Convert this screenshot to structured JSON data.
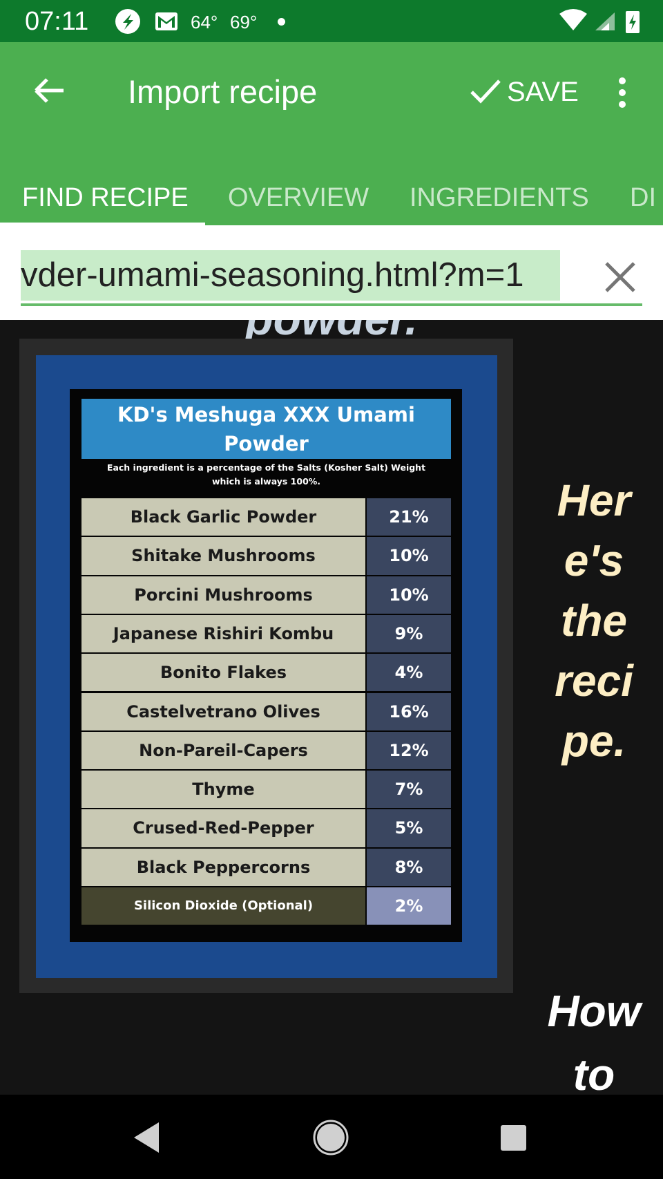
{
  "status_bar": {
    "time": "07:11",
    "temperatures": [
      "64°",
      "69°"
    ]
  },
  "app_bar": {
    "title": "Import recipe",
    "action": "SAVE"
  },
  "tabs": [
    "FIND RECIPE",
    "OVERVIEW",
    "INGREDIENTS",
    "DI"
  ],
  "url_field": {
    "text": "vder-umami-seasoning.html?m=1"
  },
  "web_content": {
    "heading_fragment": "powder.",
    "recipe_image": {
      "title": "KD's Meshuga XXX Umami Powder",
      "subtitle": "Each ingredient is a percentage of the Salts (Kosher Salt) Weight which is always 100%.",
      "rows": [
        [
          "Black Garlic Powder",
          "21%"
        ],
        [
          "Shitake Mushrooms",
          "10%"
        ],
        [
          "Porcini Mushrooms",
          "10%"
        ],
        [
          "Japanese Rishiri Kombu",
          "9%"
        ],
        [
          "Bonito Flakes",
          "4%"
        ],
        [
          "Castelvetrano Olives",
          "16%"
        ],
        [
          "Non-Pareil-Capers",
          "12%"
        ],
        [
          "Thyme",
          "7%"
        ],
        [
          "Crused-Red-Pepper",
          "5%"
        ],
        [
          "Black Peppercorns",
          "8%"
        ],
        [
          "Silicon Dioxide (Optional)",
          "2%"
        ]
      ]
    },
    "side_text": [
      "Her",
      "e's",
      "the",
      "reci",
      "pe."
    ],
    "next_text": [
      "How",
      "to"
    ]
  }
}
